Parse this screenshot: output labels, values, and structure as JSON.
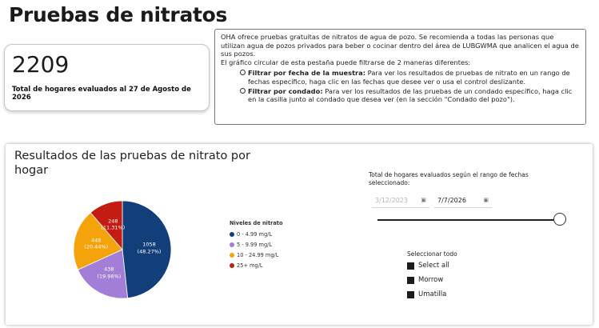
{
  "page": {
    "title": "Pruebas de nitratos"
  },
  "kpi": {
    "value": "2209",
    "label": "Total de hogares evaluados al 27 de Agosto de 2026"
  },
  "info": {
    "paragraph1": "OHA ofrece pruebas gratuitas de nitratos de agua de pozo. Se recomienda a todas las personas que utilizan agua de pozos privados para beber o cocinar dentro del área de LUBGWMA que analicen el agua de sus pozos.",
    "paragraph2": "El gráfico circular de esta pestaña puede filtrarse de 2 maneras diferentes:",
    "items": [
      {
        "bold": "Filtrar por fecha de la muestra:",
        "text": " Para ver los resultados de pruebas de nitrato en un rango de fechas específico, haga clic en las fechas que desee ver o usa el control deslizante."
      },
      {
        "bold": "Filtrar por condado:",
        "text": " Para ver los resultados de las pruebas de un condado específico, haga clic en la casilla junto al condado que desea ver (en la  sección \"Condado del pozo\")."
      }
    ]
  },
  "chart_panel": {
    "title": "Resultados de las pruebas de nitrato por hogar"
  },
  "chart_data": {
    "type": "pie",
    "title": "Resultados de las pruebas de nitrato por hogar",
    "legend_title": "Niveles de nitrato",
    "legend_placement": "right",
    "slices": [
      {
        "name": "0 - 4.99 mg/L",
        "value": 1058,
        "label": "1058",
        "pct": "(48.27%)",
        "color": "#123e7a"
      },
      {
        "name": "5 - 9.99 mg/L",
        "value": 438,
        "label": "438",
        "pct": "(19.98%)",
        "color": "#a27ed6"
      },
      {
        "name": "10 - 24.99 mg/L",
        "value": 448,
        "label": "448",
        "pct": "(20.44%)",
        "color": "#f5a30a"
      },
      {
        "name": "25+ mg/L",
        "value": 248,
        "label": "248",
        "pct": "(11.31%)",
        "color": "#c41b12"
      }
    ]
  },
  "date_filter": {
    "title": "Total de hogares evaluados según el rango de fechas seleccionado:",
    "start": "3/12/2023",
    "end": "7/7/2026",
    "calendar_icon": "calendar-icon",
    "slider_start": 1.0,
    "slider_end": 1.0
  },
  "county_filter": {
    "title": "Seleccionar todo",
    "options": [
      {
        "label": "Select all"
      },
      {
        "label": "Morrow"
      },
      {
        "label": "Umatilla"
      }
    ]
  }
}
